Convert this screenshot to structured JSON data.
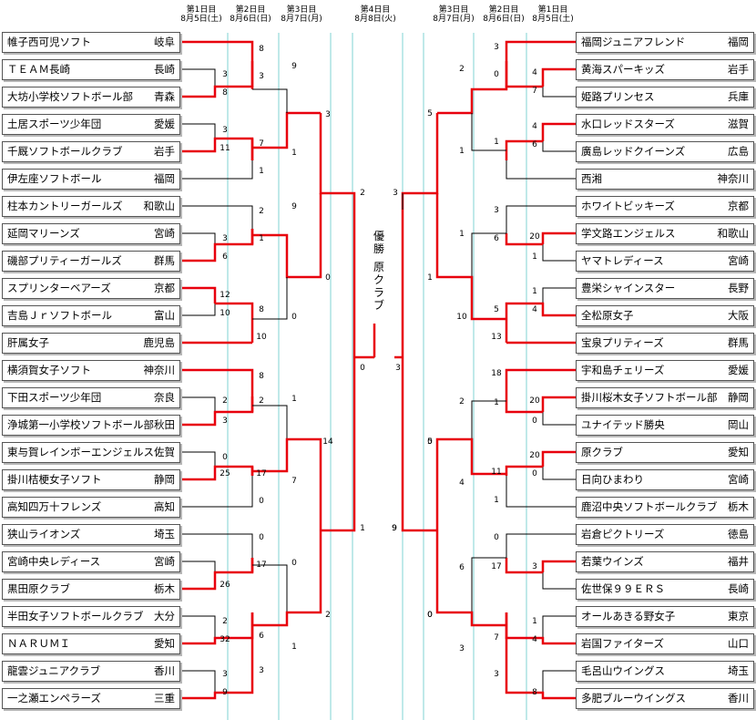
{
  "left": {
    "teams": [
      {
        "name": "帷子西可児ソフト",
        "pref": "岐阜"
      },
      {
        "name": "ＴＥＡＭ長崎",
        "pref": "長崎"
      },
      {
        "name": "大坊小学校ソフトボール部",
        "pref": "青森"
      },
      {
        "name": "土居スポーツ少年団",
        "pref": "愛媛"
      },
      {
        "name": "千厩ソフトボールクラブ",
        "pref": "岩手"
      },
      {
        "name": "伊左座ソフトボール",
        "pref": "福岡"
      },
      {
        "name": "柱本カントリーガールズ",
        "pref": "和歌山"
      },
      {
        "name": "延岡マリーンズ",
        "pref": "宮崎"
      },
      {
        "name": "磯部プリティーガールズ",
        "pref": "群馬"
      },
      {
        "name": "スプリンターベアーズ",
        "pref": "京都"
      },
      {
        "name": "吉島Ｊｒソフトボール",
        "pref": "富山"
      },
      {
        "name": "肝属女子",
        "pref": "鹿児島"
      },
      {
        "name": "横須賀女子ソフト",
        "pref": "神奈川"
      },
      {
        "name": "下田スポーツ少年団",
        "pref": "奈良"
      },
      {
        "name": "浄城第一小学校ソフトボール部",
        "pref": "秋田"
      },
      {
        "name": "東与賀レインボーエンジェルス",
        "pref": "佐賀"
      },
      {
        "name": "掛川桔梗女子ソフト",
        "pref": "静岡"
      },
      {
        "name": "高知四万十フレンズ",
        "pref": "高知"
      },
      {
        "name": "狭山ライオンズ",
        "pref": "埼玉"
      },
      {
        "name": "宮崎中央レディース",
        "pref": "宮崎"
      },
      {
        "name": "黒田原クラブ",
        "pref": "栃木"
      },
      {
        "name": "半田女子ソフトボールクラブ",
        "pref": "大分"
      },
      {
        "name": "ＮＡＲＵＭＩ",
        "pref": "愛知"
      },
      {
        "name": "龍雲ジュニアクラブ",
        "pref": "香川"
      },
      {
        "name": "一之瀬エンペラーズ",
        "pref": "三重"
      }
    ]
  },
  "right": {
    "teams": [
      {
        "name": "福岡ジュニアフレンド",
        "pref": "福岡"
      },
      {
        "name": "黄海スパーキッズ",
        "pref": "岩手"
      },
      {
        "name": "姫路プリンセス",
        "pref": "兵庫"
      },
      {
        "name": "水口レッドスターズ",
        "pref": "滋賀"
      },
      {
        "name": "廣島レッドクイーンズ",
        "pref": "広島"
      },
      {
        "name": "西湘",
        "pref": "神奈川"
      },
      {
        "name": "ホワイトビッキーズ",
        "pref": "京都"
      },
      {
        "name": "学文路エンジェルス",
        "pref": "和歌山"
      },
      {
        "name": "ヤマトレディース",
        "pref": "宮崎"
      },
      {
        "name": "豊栄シャインスター",
        "pref": "長野"
      },
      {
        "name": "全松原女子",
        "pref": "大阪"
      },
      {
        "name": "宝泉プリティーズ",
        "pref": "群馬"
      },
      {
        "name": "宇和島チェリーズ",
        "pref": "愛媛"
      },
      {
        "name": "掛川桜木女子ソフトボール部",
        "pref": "静岡"
      },
      {
        "name": "ユナイテッド勝央",
        "pref": "岡山"
      },
      {
        "name": "原クラブ",
        "pref": "愛知"
      },
      {
        "name": "日向ひまわり",
        "pref": "宮崎"
      },
      {
        "name": "鹿沼中央ソフトボールクラブ",
        "pref": "栃木"
      },
      {
        "name": "岩倉ピクトリーズ",
        "pref": "徳島"
      },
      {
        "name": "若葉ウインズ",
        "pref": "福井"
      },
      {
        "name": "佐世保９９ＥＲＳ",
        "pref": "長崎"
      },
      {
        "name": "オールあきる野女子",
        "pref": "東京"
      },
      {
        "name": "岩国ファイターズ",
        "pref": "山口"
      },
      {
        "name": "毛呂山ウイングス",
        "pref": "埼玉"
      },
      {
        "name": "多肥ブルーウイングス",
        "pref": "香川"
      }
    ]
  },
  "days": {
    "d1l": {
      "line1": "第1日目",
      "line2": "8月5日(土)"
    },
    "d2l": {
      "line1": "第2日目",
      "line2": "8月6日(日)"
    },
    "d3l": {
      "line1": "第3日目",
      "line2": "8月7日(月)"
    },
    "d4": {
      "line1": "第4日目",
      "line2": "8月8日(火)"
    },
    "d3r": {
      "line1": "第3日目",
      "line2": "8月7日(月)"
    },
    "d2r": {
      "line1": "第2日目",
      "line2": "8月6日(日)"
    },
    "d1r": {
      "line1": "第1日目",
      "line2": "8月5日(土)"
    }
  },
  "champion": {
    "label": "優勝",
    "team": "原クラブ"
  },
  "scores": [
    "8",
    "3",
    "3",
    "8",
    "3",
    "11",
    "7",
    "1",
    "9",
    "1",
    "2",
    "3",
    "1",
    "6",
    "9",
    "12",
    "10",
    "8",
    "10",
    "0",
    "3",
    "0",
    "2",
    "8",
    "2",
    "2",
    "3",
    "1",
    "0",
    "25",
    "17",
    "7",
    "14",
    "0",
    "0",
    "17",
    "0",
    "26",
    "2",
    "32",
    "6",
    "1",
    "3",
    "9",
    "3",
    "2",
    "0",
    "1",
    "3",
    "9",
    "3",
    "4",
    "0",
    "7",
    "2",
    "5",
    "4",
    "6",
    "1",
    "1",
    "3",
    "20",
    "6",
    "1",
    "1",
    "1",
    "1",
    "4",
    "5",
    "10",
    "13",
    "3",
    "0",
    "18",
    "20",
    "1",
    "2",
    "0",
    "20",
    "11",
    "0",
    "1",
    "4",
    "5",
    "0",
    "17",
    "3",
    "0",
    "1",
    "4",
    "7",
    "6",
    "3",
    "8",
    "3",
    "0",
    "9"
  ],
  "colors": {
    "winner": "#e8000c",
    "loser": "#000000",
    "day_line": "#7fd3d3",
    "box_border": "#555555",
    "shadow": "#b7b7b7"
  }
}
